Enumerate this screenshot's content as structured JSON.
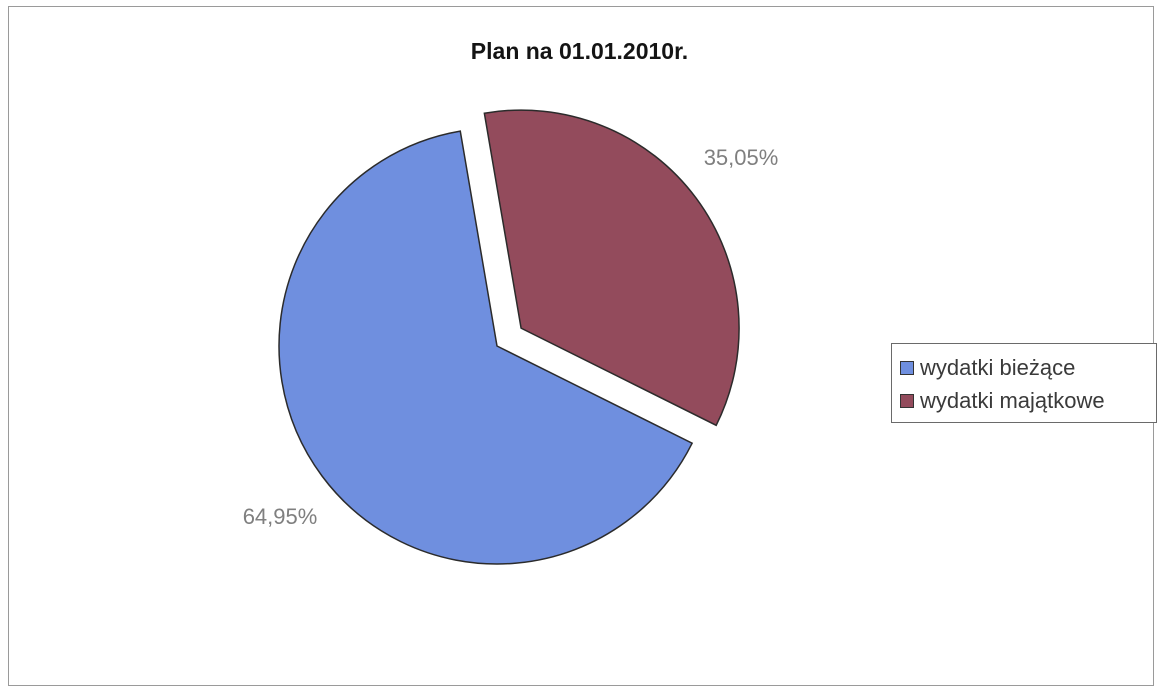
{
  "chart_data": {
    "type": "pie",
    "title": "Plan na 01.01.2010r.",
    "categories": [
      "wydatki bieżące",
      "wydatki majątkowe"
    ],
    "values": [
      64.95,
      35.05
    ],
    "data_labels": [
      "64,95%",
      "35,05%"
    ],
    "colors": [
      "#6f8fdf",
      "#934b5c"
    ],
    "exploded": [
      false,
      true
    ],
    "legend_position": "right",
    "legend": [
      "wydatki bieżące",
      "wydatki majątkowe"
    ]
  }
}
